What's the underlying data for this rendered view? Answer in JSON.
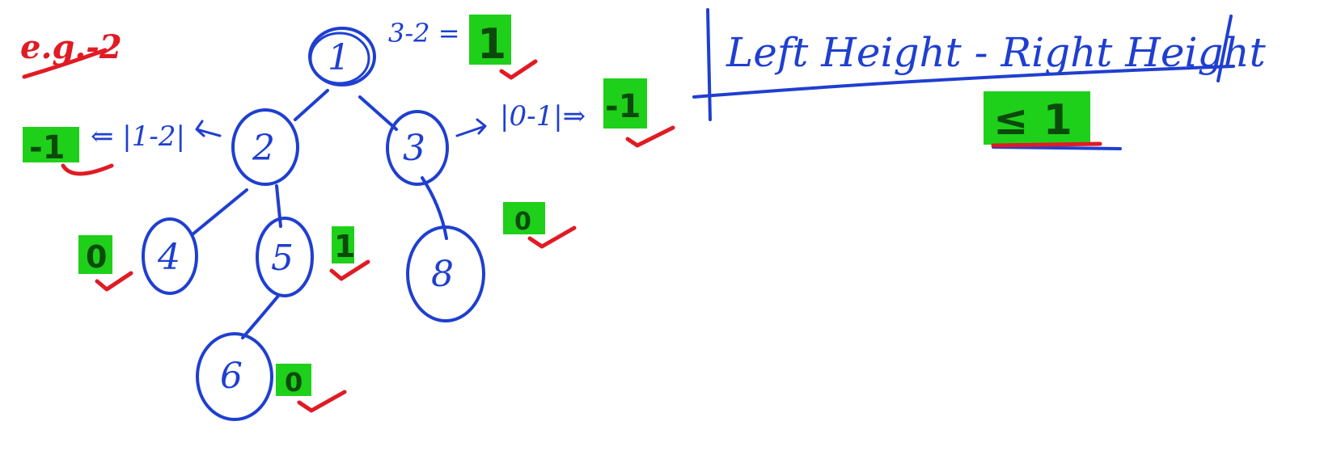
{
  "example_label": "e.g.-2",
  "colors": {
    "ink": "#1f3fd0",
    "highlight": "#1ed01a",
    "tick": "#e01b24"
  },
  "nodes": [
    {
      "id": "n1",
      "label": "1"
    },
    {
      "id": "n2",
      "label": "2"
    },
    {
      "id": "n3",
      "label": "3"
    },
    {
      "id": "n4",
      "label": "4"
    },
    {
      "id": "n5",
      "label": "5"
    },
    {
      "id": "n6",
      "label": "6"
    },
    {
      "id": "n8",
      "label": "8"
    }
  ],
  "annotations": {
    "root_calc": "3-2 =",
    "root_balance": "1",
    "node2_calc": "⇐ |1-2|",
    "node2_balance": "-1",
    "node3_calc": "|0-1|⇒",
    "node3_balance": "-1",
    "node4_balance": "0",
    "node5_balance": "1",
    "node6_balance": "0",
    "node8_balance": "0"
  },
  "rule": {
    "expression": "Left Height - Right Height",
    "condition": "≤ 1"
  }
}
